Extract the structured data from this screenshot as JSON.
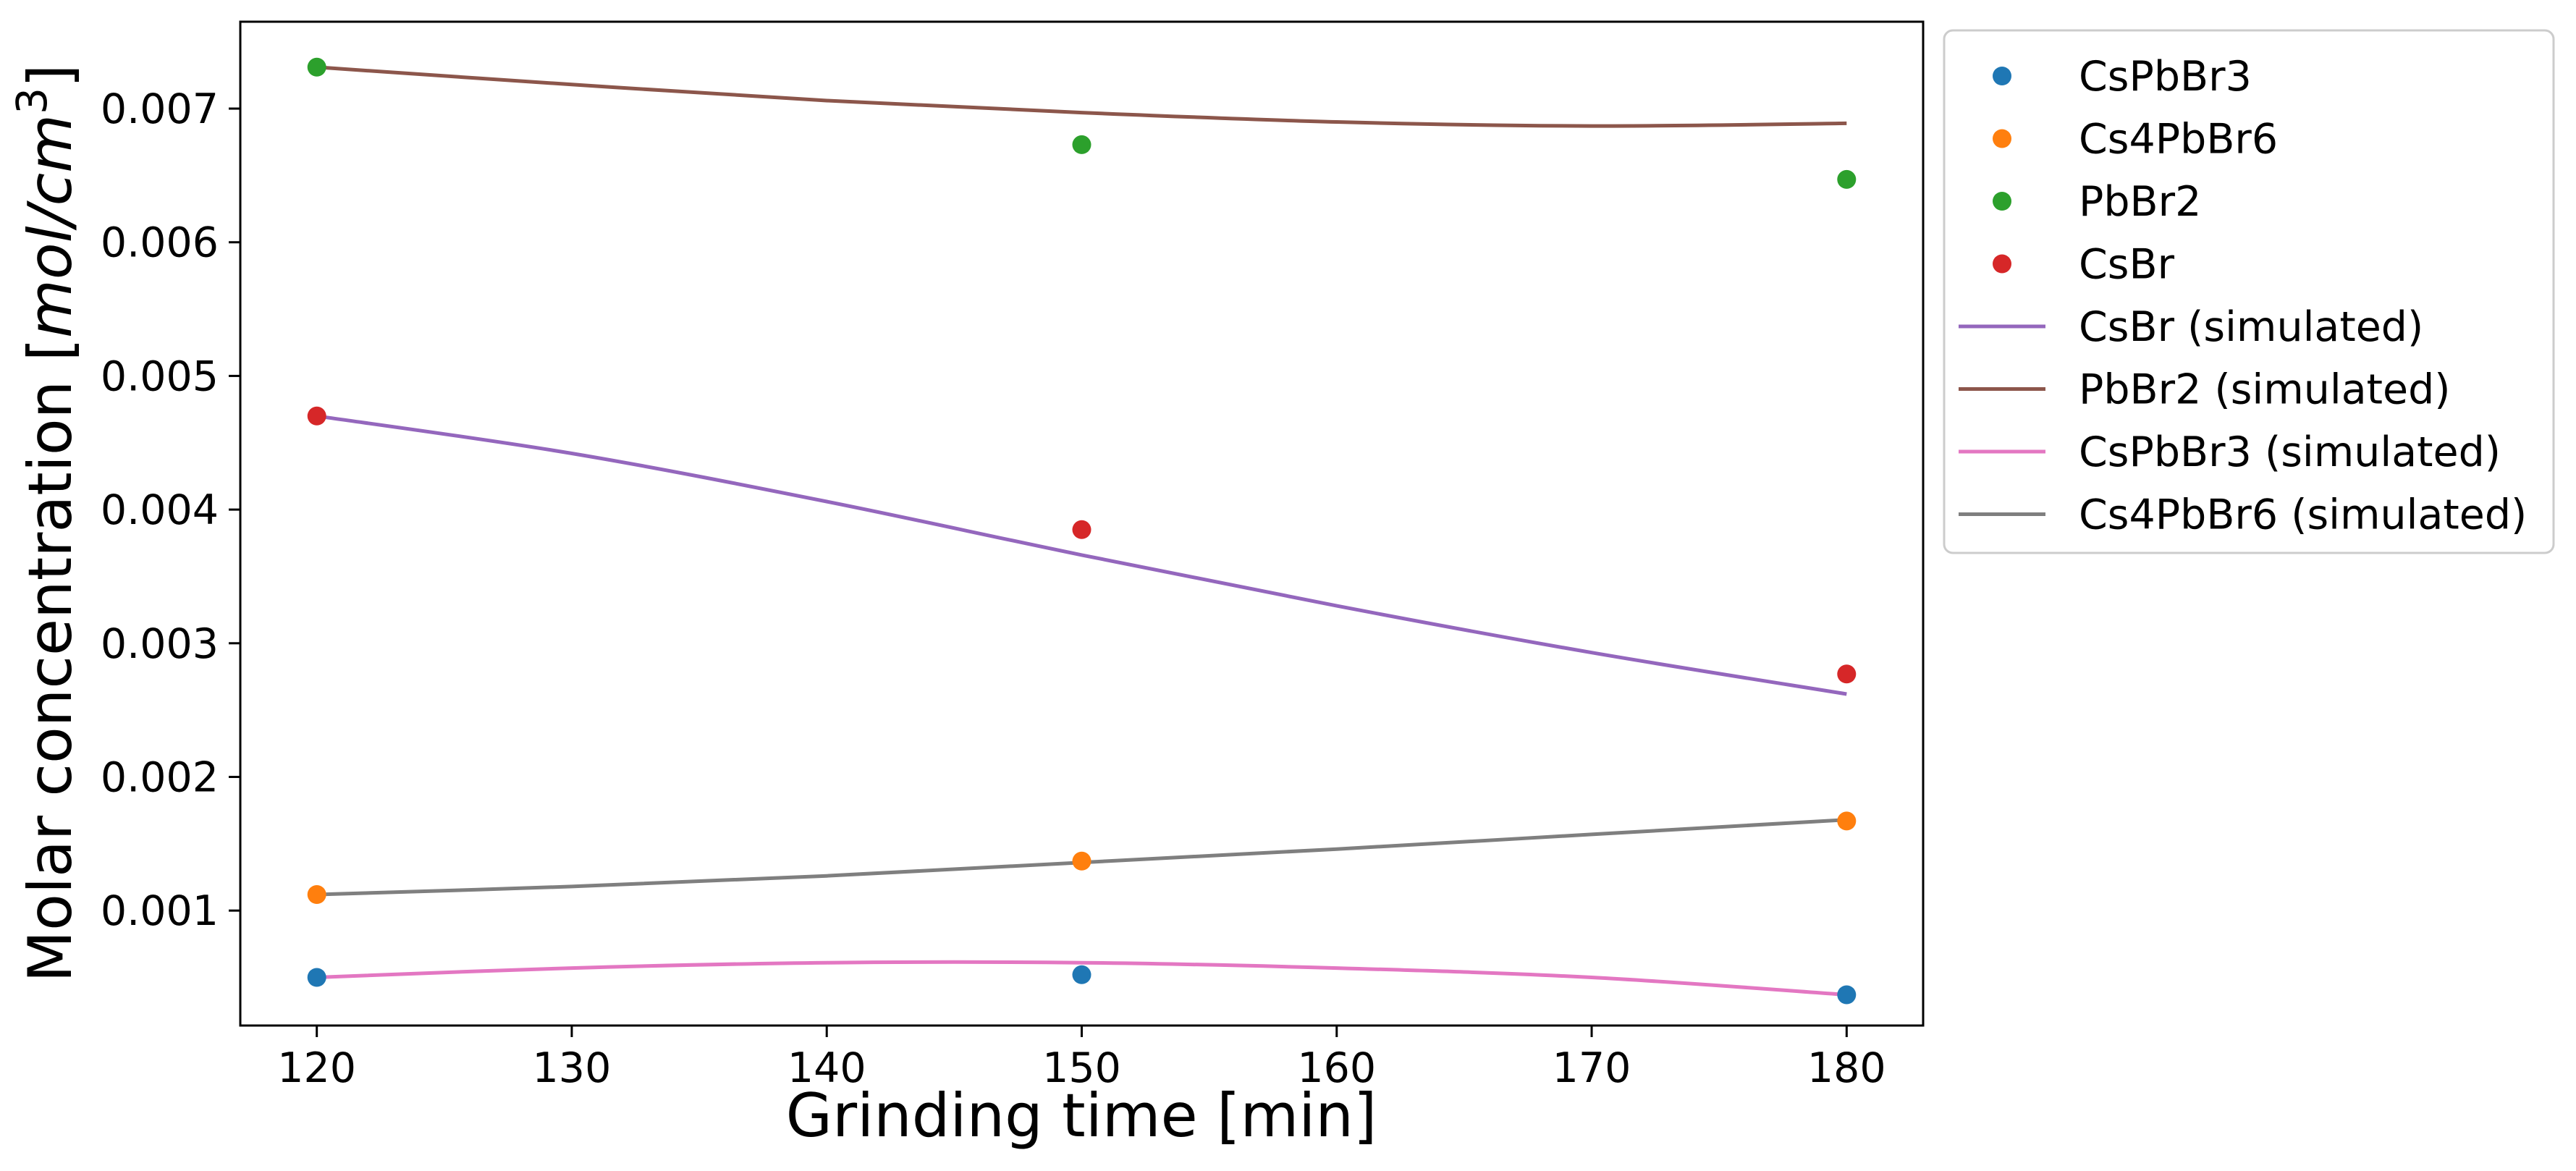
{
  "chart_data": {
    "type": "line",
    "xlabel": "Grinding time [min]",
    "ylabel": "Molar concentration [mol/cm³]",
    "ylabel_parts": {
      "prefix": "Molar concentration [",
      "unit": "mol/cm",
      "exp": "3",
      "suffix": "]"
    },
    "xlim": [
      117,
      183
    ],
    "ylim": [
      0.00014,
      0.00765
    ],
    "xticks": [
      120,
      130,
      140,
      150,
      160,
      170,
      180
    ],
    "xtick_labels": [
      "120",
      "130",
      "140",
      "150",
      "160",
      "170",
      "180"
    ],
    "yticks": [
      0.001,
      0.002,
      0.003,
      0.004,
      0.005,
      0.006,
      0.007
    ],
    "ytick_labels": [
      "0.001",
      "0.002",
      "0.003",
      "0.004",
      "0.005",
      "0.006",
      "0.007"
    ],
    "legend_position": "outside-upper-right",
    "grid": false,
    "scatter_series": [
      {
        "name": "CsPbBr3",
        "color": "#1f77b4",
        "x": [
          120,
          150,
          180
        ],
        "y": [
          0.0005,
          0.00052,
          0.00037
        ]
      },
      {
        "name": "Cs4PbBr6",
        "color": "#ff7f0e",
        "x": [
          120,
          150,
          180
        ],
        "y": [
          0.00112,
          0.00137,
          0.00167
        ]
      },
      {
        "name": "PbBr2",
        "color": "#2ca02c",
        "x": [
          120,
          150,
          180
        ],
        "y": [
          0.00731,
          0.00673,
          0.00647
        ]
      },
      {
        "name": "CsBr",
        "color": "#d62728",
        "x": [
          120,
          150,
          180
        ],
        "y": [
          0.0047,
          0.00385,
          0.00277
        ]
      }
    ],
    "line_series": [
      {
        "name": "CsBr (simulated)",
        "color": "#9467bd",
        "x": [
          120,
          130,
          140,
          150,
          160,
          170,
          180
        ],
        "y": [
          0.0047,
          0.00442,
          0.00406,
          0.00366,
          0.00328,
          0.00293,
          0.00262
        ]
      },
      {
        "name": "PbBr2 (simulated)",
        "color": "#8c564b",
        "x": [
          120,
          130,
          140,
          150,
          160,
          170,
          180
        ],
        "y": [
          0.00731,
          0.00718,
          0.00706,
          0.00697,
          0.0069,
          0.00687,
          0.00689
        ]
      },
      {
        "name": "CsPbBr3 (simulated)",
        "color": "#e377c2",
        "x": [
          120,
          130,
          140,
          150,
          160,
          170,
          180
        ],
        "y": [
          0.0005,
          0.00057,
          0.00061,
          0.00061,
          0.00057,
          0.0005,
          0.00037
        ]
      },
      {
        "name": "Cs4PbBr6 (simulated)",
        "color": "#7f7f7f",
        "x": [
          120,
          130,
          140,
          150,
          160,
          170,
          180
        ],
        "y": [
          0.00112,
          0.00118,
          0.00126,
          0.00136,
          0.00146,
          0.00157,
          0.00168
        ]
      }
    ]
  }
}
